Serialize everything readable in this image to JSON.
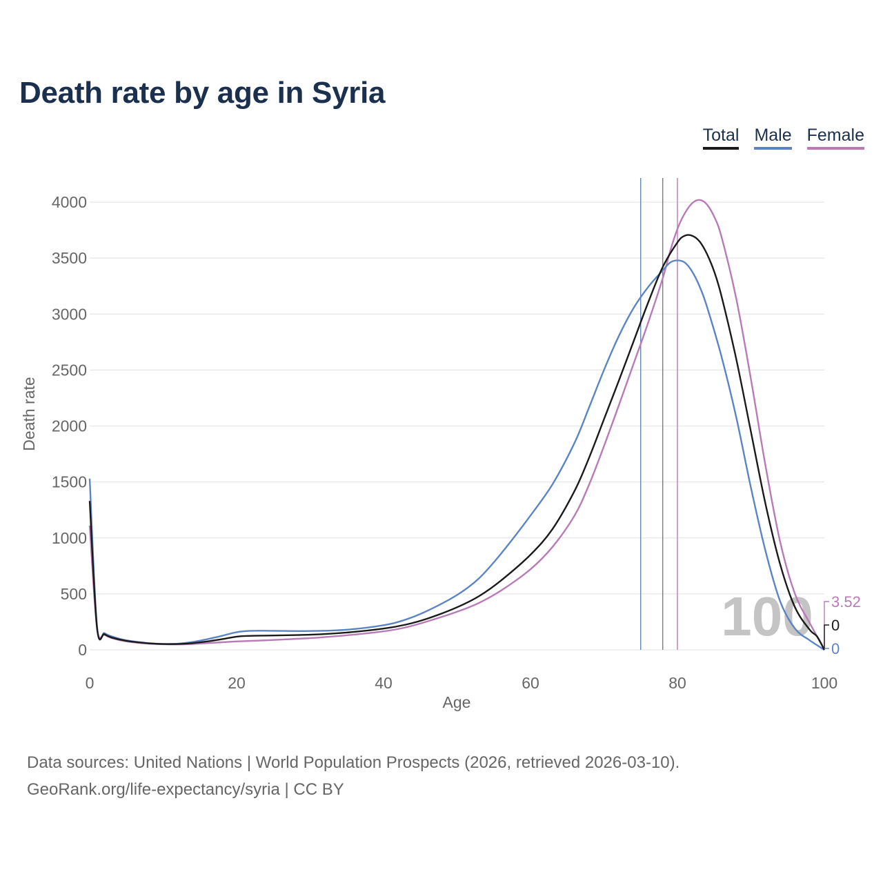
{
  "title": "Death rate by age in Syria",
  "legend": {
    "total": "Total",
    "male": "Male",
    "female": "Female"
  },
  "colors": {
    "total": "#1a1a1a",
    "male": "#5b84c4",
    "female": "#b87ab8",
    "title": "#1b2f4f",
    "grid": "#e6e6e6",
    "watermark": "#c4c4c4"
  },
  "chart_data": {
    "type": "line",
    "xlabel": "Age",
    "ylabel": "Death rate",
    "xlim": [
      0,
      100
    ],
    "ylim": [
      0,
      4000
    ],
    "x_ticks": [
      0,
      20,
      40,
      60,
      80,
      100
    ],
    "y_ticks": [
      0,
      500,
      1000,
      1500,
      2000,
      2500,
      3000,
      3500,
      4000
    ],
    "x_tick_labels": [
      "0",
      "20",
      "40",
      "60",
      "80",
      "100"
    ],
    "y_tick_labels": [
      "0",
      "500",
      "1000",
      "1500",
      "2000",
      "2500",
      "3000",
      "3500",
      "4000"
    ],
    "watermark": "100",
    "vertical_markers": [
      {
        "series": "Male",
        "x": 75
      },
      {
        "series": "Total",
        "x": 78
      },
      {
        "series": "Female",
        "x": 80
      }
    ],
    "end_labels": [
      {
        "series": "Female",
        "text": "3.52"
      },
      {
        "series": "Total",
        "text": "0"
      },
      {
        "series": "Male",
        "text": "0"
      }
    ],
    "series": [
      {
        "name": "Total",
        "color": "#1a1a1a",
        "points": [
          [
            0,
            1330
          ],
          [
            1,
            195
          ],
          [
            2,
            140
          ],
          [
            3,
            110
          ],
          [
            5,
            80
          ],
          [
            8,
            58
          ],
          [
            10,
            52
          ],
          [
            12,
            52
          ],
          [
            14,
            60
          ],
          [
            16,
            75
          ],
          [
            18,
            95
          ],
          [
            20,
            118
          ],
          [
            22,
            125
          ],
          [
            25,
            128
          ],
          [
            30,
            135
          ],
          [
            35,
            155
          ],
          [
            40,
            190
          ],
          [
            43,
            225
          ],
          [
            46,
            280
          ],
          [
            50,
            380
          ],
          [
            53,
            480
          ],
          [
            56,
            620
          ],
          [
            60,
            850
          ],
          [
            63,
            1080
          ],
          [
            66,
            1420
          ],
          [
            68,
            1720
          ],
          [
            70,
            2060
          ],
          [
            72,
            2400
          ],
          [
            74,
            2750
          ],
          [
            76,
            3100
          ],
          [
            78,
            3420
          ],
          [
            80,
            3640
          ],
          [
            81,
            3700
          ],
          [
            82,
            3700
          ],
          [
            83,
            3650
          ],
          [
            84,
            3540
          ],
          [
            85,
            3380
          ],
          [
            86,
            3160
          ],
          [
            88,
            2600
          ],
          [
            90,
            1950
          ],
          [
            92,
            1300
          ],
          [
            94,
            760
          ],
          [
            96,
            380
          ],
          [
            98,
            180
          ],
          [
            99,
            120
          ],
          [
            100,
            0
          ]
        ]
      },
      {
        "name": "Male",
        "color": "#5b84c4",
        "points": [
          [
            0,
            1530
          ],
          [
            1,
            205
          ],
          [
            2,
            150
          ],
          [
            3,
            120
          ],
          [
            5,
            85
          ],
          [
            8,
            60
          ],
          [
            10,
            53
          ],
          [
            12,
            55
          ],
          [
            14,
            70
          ],
          [
            16,
            95
          ],
          [
            18,
            125
          ],
          [
            20,
            158
          ],
          [
            22,
            170
          ],
          [
            25,
            170
          ],
          [
            30,
            168
          ],
          [
            35,
            180
          ],
          [
            40,
            220
          ],
          [
            43,
            270
          ],
          [
            46,
            350
          ],
          [
            50,
            490
          ],
          [
            53,
            640
          ],
          [
            56,
            860
          ],
          [
            60,
            1200
          ],
          [
            63,
            1480
          ],
          [
            66,
            1850
          ],
          [
            68,
            2170
          ],
          [
            70,
            2500
          ],
          [
            72,
            2800
          ],
          [
            74,
            3050
          ],
          [
            76,
            3240
          ],
          [
            78,
            3390
          ],
          [
            79,
            3460
          ],
          [
            80,
            3480
          ],
          [
            81,
            3460
          ],
          [
            82,
            3380
          ],
          [
            83,
            3250
          ],
          [
            84,
            3070
          ],
          [
            86,
            2620
          ],
          [
            88,
            2080
          ],
          [
            90,
            1450
          ],
          [
            92,
            880
          ],
          [
            94,
            430
          ],
          [
            96,
            190
          ],
          [
            98,
            85
          ],
          [
            100,
            0
          ]
        ]
      },
      {
        "name": "Female",
        "color": "#b87ab8",
        "points": [
          [
            0,
            1110
          ],
          [
            1,
            190
          ],
          [
            2,
            135
          ],
          [
            3,
            105
          ],
          [
            5,
            75
          ],
          [
            8,
            55
          ],
          [
            10,
            50
          ],
          [
            12,
            48
          ],
          [
            14,
            52
          ],
          [
            16,
            60
          ],
          [
            18,
            68
          ],
          [
            20,
            75
          ],
          [
            22,
            80
          ],
          [
            25,
            88
          ],
          [
            30,
            105
          ],
          [
            35,
            130
          ],
          [
            40,
            165
          ],
          [
            43,
            200
          ],
          [
            46,
            255
          ],
          [
            50,
            340
          ],
          [
            53,
            420
          ],
          [
            56,
            530
          ],
          [
            60,
            720
          ],
          [
            63,
            920
          ],
          [
            66,
            1200
          ],
          [
            68,
            1480
          ],
          [
            70,
            1820
          ],
          [
            72,
            2180
          ],
          [
            74,
            2550
          ],
          [
            76,
            2920
          ],
          [
            78,
            3320
          ],
          [
            79,
            3560
          ],
          [
            80,
            3760
          ],
          [
            81,
            3900
          ],
          [
            82,
            3990
          ],
          [
            83,
            4020
          ],
          [
            84,
            3980
          ],
          [
            85,
            3870
          ],
          [
            86,
            3690
          ],
          [
            88,
            3140
          ],
          [
            90,
            2420
          ],
          [
            92,
            1640
          ],
          [
            94,
            960
          ],
          [
            96,
            500
          ],
          [
            98,
            240
          ],
          [
            100,
            4
          ]
        ]
      }
    ]
  },
  "footer": {
    "line1": "Data sources: United Nations | World Population Prospects (2026, retrieved 2026-03-10).",
    "line2": "GeoRank.org/life-expectancy/syria | CC BY"
  }
}
